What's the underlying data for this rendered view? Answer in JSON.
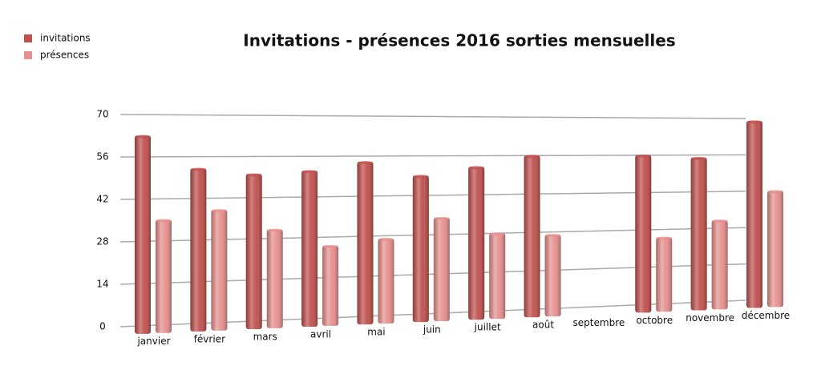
{
  "chart_data": {
    "type": "bar",
    "title": "Invitations - présences 2016  sorties mensuelles",
    "categories": [
      "janvier",
      "février",
      "mars",
      "avril",
      "mai",
      "juin",
      "juillet",
      "août",
      "septembre",
      "octobre",
      "novembre",
      "décembre"
    ],
    "series": [
      {
        "name": "invitations",
        "color": "#c0504d",
        "values": [
          63,
          52,
          50,
          51,
          54,
          49,
          52,
          56,
          null,
          56,
          55,
          69
        ]
      },
      {
        "name": "présences",
        "color": "#e6908e",
        "values": [
          35,
          38,
          31,
          25,
          27,
          34,
          28,
          27,
          null,
          25,
          31,
          42
        ]
      }
    ],
    "ylim": [
      0,
      70
    ],
    "yticks": [
      0,
      14,
      28,
      42,
      56,
      70
    ],
    "grid": true,
    "legend": "top-left"
  }
}
